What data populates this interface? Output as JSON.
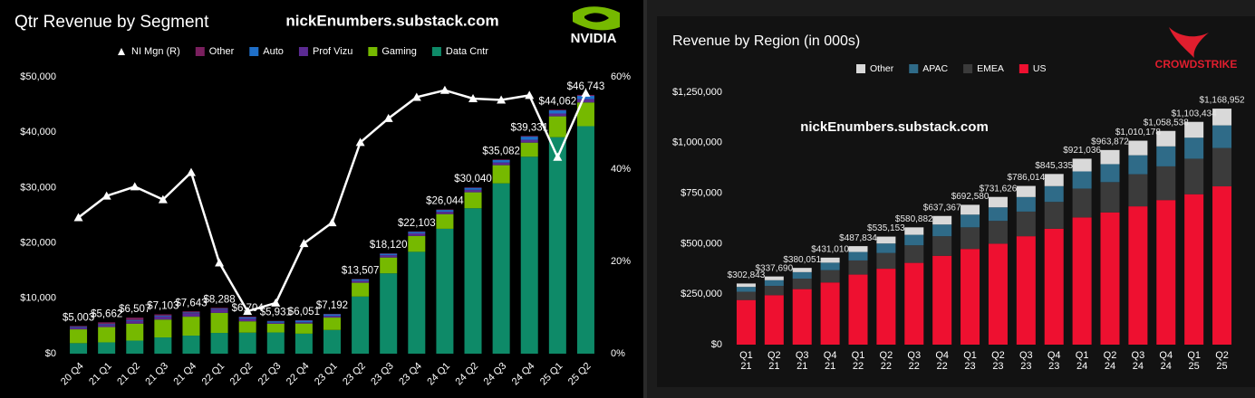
{
  "chart_data": [
    {
      "type": "bar",
      "stacked": true,
      "title": "Qtr Revenue by Segment",
      "watermark": "nickEnumbers.substack.com",
      "logo": "NVIDIA",
      "categories": [
        "20 Q4",
        "21 Q1",
        "21 Q2",
        "21 Q3",
        "21 Q4",
        "22 Q1",
        "22 Q2",
        "22 Q3",
        "22 Q4",
        "23 Q1",
        "23 Q2",
        "23 Q3",
        "23 Q4",
        "24 Q1",
        "24 Q2",
        "24 Q3",
        "24 Q4",
        "25 Q1",
        "25 Q2"
      ],
      "series": [
        {
          "name": "NI Mgn (R)",
          "type": "line",
          "axis": "y2",
          "color": "#ffffff",
          "values": [
            29.5,
            34.2,
            36.2,
            33.4,
            39.3,
            19.7,
            9.2,
            11.0,
            23.9,
            28.4,
            45.8,
            51.0,
            55.6,
            57.1,
            55.3,
            55.0,
            56.0,
            42.6,
            56.5
          ]
        },
        {
          "name": "Other",
          "color": "#7a1f5e",
          "values": [
            153,
            328,
            409,
            234,
            192,
            158,
            140,
            73,
            84,
            77,
            66,
            73,
            90,
            78,
            88,
            97,
            126,
            111,
            173
          ]
        },
        {
          "name": "Auto",
          "color": "#1f6fc8",
          "values": [
            145,
            154,
            152,
            135,
            125,
            138,
            220,
            251,
            294,
            296,
            253,
            261,
            281,
            329,
            346,
            449,
            570,
            567,
            586
          ]
        },
        {
          "name": "Prof Vizu",
          "color": "#5b2a92",
          "values": [
            307,
            372,
            519,
            577,
            643,
            622,
            496,
            200,
            226,
            295,
            379,
            416,
            463,
            427,
            454,
            486,
            511,
            509,
            601
          ]
        },
        {
          "name": "Gaming",
          "color": "#76b900",
          "values": [
            2495,
            2760,
            3061,
            3221,
            3420,
            3620,
            2042,
            1574,
            1831,
            2240,
            2486,
            2856,
            2865,
            2647,
            2880,
            3279,
            2544,
            3763,
            4287
          ]
        },
        {
          "name": "Data Cntr",
          "color": "#0e8a68",
          "values": [
            1903,
            2048,
            2366,
            2936,
            3263,
            3750,
            3806,
            3833,
            3616,
            4284,
            10323,
            14514,
            18404,
            22563,
            26272,
            30771,
            35580,
            39112,
            41096
          ]
        }
      ],
      "totals": {
        "values": [
          5003,
          5662,
          6507,
          7103,
          7643,
          8288,
          6704,
          5931,
          6051,
          7192,
          13507,
          18120,
          22103,
          26044,
          30040,
          35082,
          39331,
          44062,
          46743
        ],
        "value_labels": [
          "$5,003",
          "$5,662",
          "$6,507",
          "$7,103",
          "$7,643",
          "$8,288",
          "$6,704",
          "$5,931",
          "$6,051",
          "$7,192",
          "$13,507",
          "$18,120",
          "$22,103",
          "$26,044",
          "$30,040",
          "$35,082",
          "$39,331",
          "$44,062",
          "$46,743"
        ]
      },
      "ylim": [
        0,
        50000
      ],
      "yticks": [
        {
          "value": 0,
          "label": "$0"
        },
        {
          "value": 10000,
          "label": "$10,000"
        },
        {
          "value": 20000,
          "label": "$20,000"
        },
        {
          "value": 30000,
          "label": "$30,000"
        },
        {
          "value": 40000,
          "label": "$40,000"
        },
        {
          "value": 50000,
          "label": "$50,000"
        }
      ],
      "y2lim": [
        0,
        60
      ],
      "y2ticks": [
        {
          "value": 0,
          "label": "0%"
        },
        {
          "value": 20,
          "label": "20%"
        },
        {
          "value": 40,
          "label": "40%"
        },
        {
          "value": 60,
          "label": "60%"
        }
      ],
      "grid": false
    },
    {
      "type": "bar",
      "stacked": true,
      "title": "Revenue by Region (in 000s)",
      "watermark": "nickEnumbers.substack.com",
      "logo": "CROWDSTRIKE",
      "categories": [
        "Q1\n21",
        "Q2\n21",
        "Q3\n21",
        "Q4\n21",
        "Q1\n22",
        "Q2\n22",
        "Q3\n22",
        "Q4\n22",
        "Q1\n23",
        "Q2\n23",
        "Q3\n23",
        "Q4\n23",
        "Q1\n24",
        "Q2\n24",
        "Q3\n24",
        "Q4\n24",
        "Q1\n25",
        "Q2\n25"
      ],
      "series": [
        {
          "name": "Other",
          "color": "#d9d9d9",
          "values": [
            16843,
            18690,
            21051,
            25010,
            28834,
            34153,
            36882,
            42367,
            48580,
            51626,
            55014,
            60335,
            63036,
            69872,
            72178,
            76538,
            78434,
            82952
          ]
        },
        {
          "name": "APAC",
          "color": "#2f6b88",
          "values": [
            24000,
            28000,
            32000,
            37000,
            42000,
            47000,
            52000,
            58000,
            63000,
            67000,
            72000,
            78000,
            85000,
            89000,
            94000,
            99000,
            104000,
            112000
          ]
        },
        {
          "name": "EMEA",
          "color": "#3b3b3b",
          "values": [
            41000,
            46000,
            52000,
            61000,
            70000,
            78000,
            87000,
            97000,
            107000,
            113000,
            122000,
            133000,
            143000,
            150000,
            159000,
            167000,
            176000,
            190000
          ]
        },
        {
          "name": "US",
          "color": "#ee1030",
          "values": [
            221000,
            245000,
            275000,
            308000,
            347000,
            376000,
            405000,
            440000,
            474000,
            500000,
            537000,
            574000,
            630000,
            655000,
            685000,
            716000,
            745000,
            784000
          ]
        }
      ],
      "totals": {
        "values": [
          302843,
          337690,
          380051,
          431010,
          487834,
          535153,
          580882,
          637367,
          692580,
          731626,
          786014,
          845335,
          921036,
          963872,
          1010178,
          1058538,
          1103434,
          1168952
        ],
        "value_labels": [
          "$302,843",
          "$337,690",
          "$380,051",
          "$431,010",
          "$487,834",
          "$535,153",
          "$580,882",
          "$637,367",
          "$692,580",
          "$731,626",
          "$786,014",
          "$845,335",
          "$921,036",
          "$963,872",
          "$1,010,178",
          "$1,058,538",
          "$1,103,434",
          "$1,168,952"
        ]
      },
      "ylim": [
        0,
        1250000
      ],
      "yticks": [
        {
          "value": 0,
          "label": "$0"
        },
        {
          "value": 250000,
          "label": "$250,000"
        },
        {
          "value": 500000,
          "label": "$500,000"
        },
        {
          "value": 750000,
          "label": "$750,000"
        },
        {
          "value": 1000000,
          "label": "$1,000,000"
        },
        {
          "value": 1250000,
          "label": "$1,250,000"
        }
      ],
      "grid": false
    }
  ]
}
